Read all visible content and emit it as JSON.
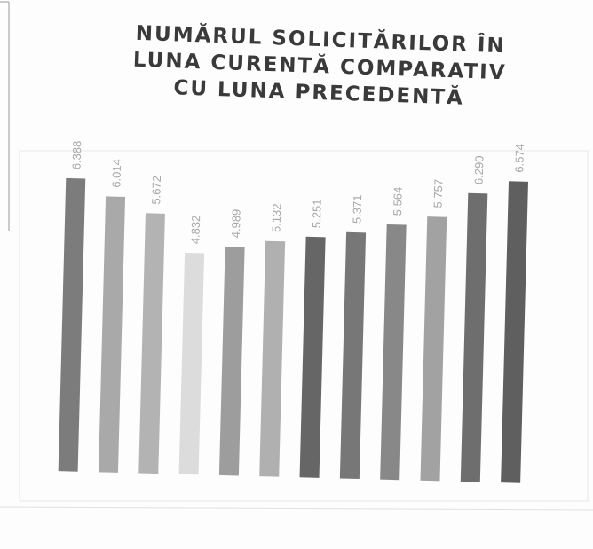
{
  "chart_data": {
    "type": "bar",
    "title": [
      "NUMĂRUL SOLICITĂRILOR ÎN",
      "LUNA CURENTĂ COMPARATIV",
      "CU LUNA PRECEDENTĂ"
    ],
    "values": [
      6388,
      6014,
      5672,
      4832,
      4989,
      5132,
      5251,
      5371,
      5564,
      5757,
      6290,
      6574
    ],
    "value_labels": [
      "6.388",
      "6.014",
      "5.672",
      "4.832",
      "4.989",
      "5.132",
      "5.251",
      "5.371",
      "5.564",
      "5.757",
      "6.290",
      "6.574"
    ],
    "colors": [
      "#7c7c7c",
      "#a9a9a9",
      "#b3b3b3",
      "#dcdcdc",
      "#9d9d9d",
      "#b0b0b0",
      "#666666",
      "#777777",
      "#888888",
      "#a2a2a2",
      "#6e6e6e",
      "#5f5f5f"
    ]
  }
}
